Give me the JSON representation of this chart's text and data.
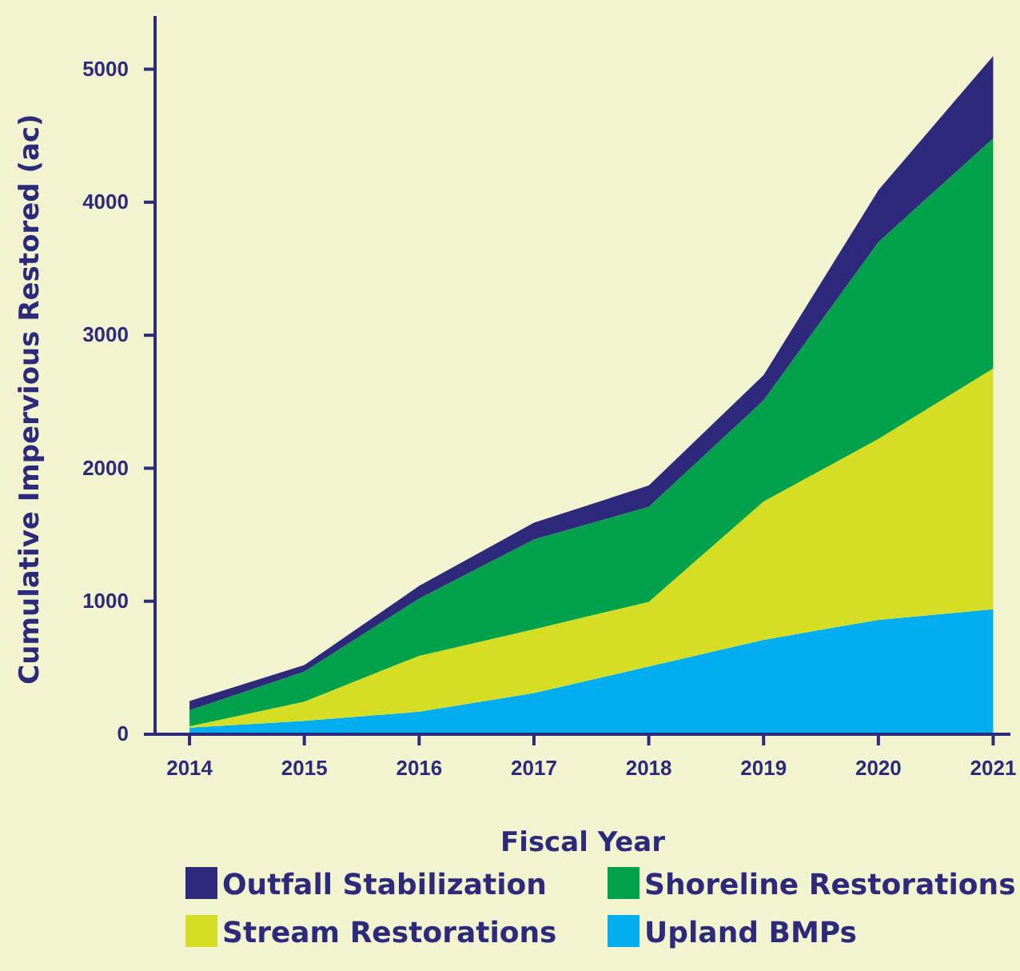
{
  "chart_data": {
    "type": "area",
    "stacked": true,
    "xlabel": "Fiscal Year",
    "ylabel": "Cumulative Impervious Restored (ac)",
    "x": [
      2014,
      2015,
      2016,
      2017,
      2018,
      2019,
      2020,
      2021
    ],
    "series": [
      {
        "name": "Upland BMPs",
        "color": "#00aeef",
        "values": [
          50,
          100,
          170,
          310,
          510,
          710,
          860,
          940
        ]
      },
      {
        "name": "Stream Restorations",
        "color": "#d4df24",
        "values": [
          10,
          145,
          420,
          480,
          485,
          1040,
          1360,
          1810
        ]
      },
      {
        "name": "Shoreline Restorations",
        "color": "#00a14b",
        "values": [
          120,
          225,
          430,
          675,
          715,
          760,
          1480,
          1730
        ]
      },
      {
        "name": "Outfall Stabilization",
        "color": "#2e2a7b",
        "values": [
          70,
          50,
          95,
          125,
          160,
          190,
          390,
          620
        ]
      }
    ],
    "xlim": [
      2013.7,
      2021.15
    ],
    "ylim": [
      0,
      5400
    ],
    "xticks": [
      2014,
      2015,
      2016,
      2017,
      2018,
      2019,
      2020,
      2021
    ],
    "yticks": [
      0,
      1000,
      2000,
      3000,
      4000,
      5000
    ],
    "grid": false,
    "legend": "bottom"
  }
}
